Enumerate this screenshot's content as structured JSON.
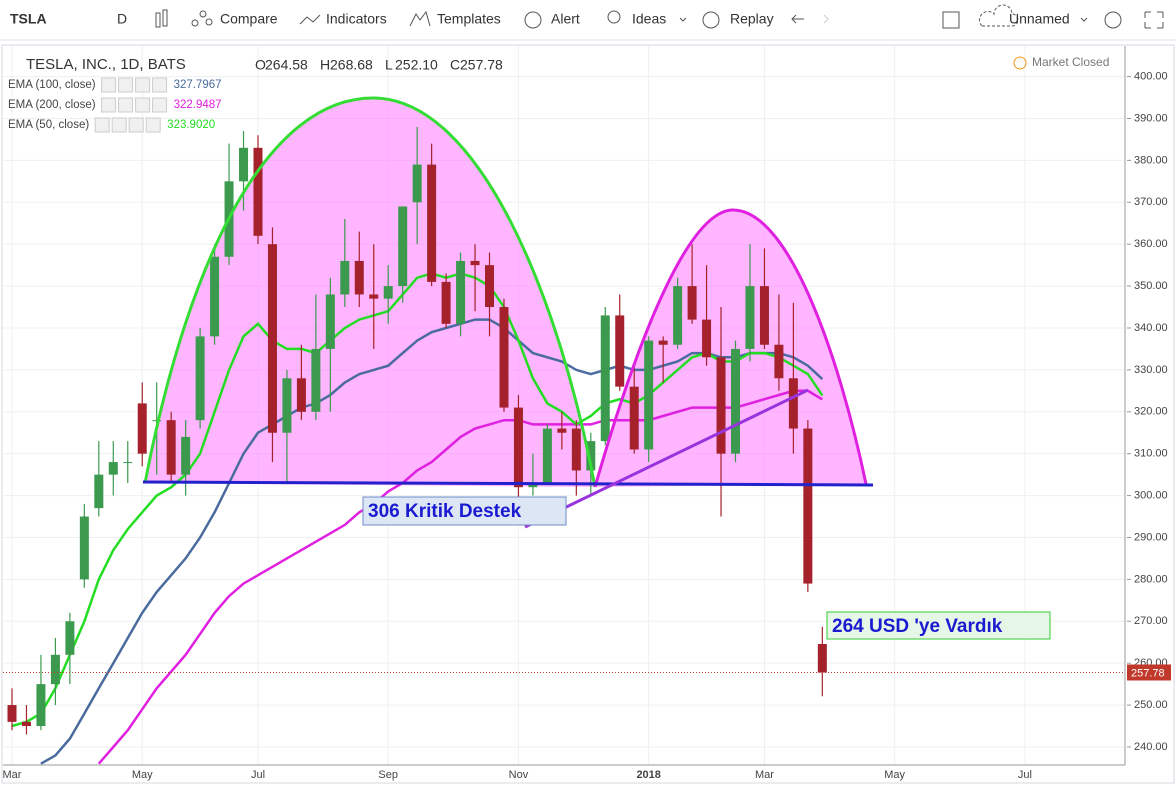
{
  "toolbar": {
    "symbol": "TSLA",
    "interval": "D",
    "buttons": [
      "Compare",
      "Indicators",
      "Templates",
      "Alert",
      "Ideas",
      "Replay"
    ],
    "layout": "Unnamed"
  },
  "chart_data": {
    "type": "candlestick",
    "title": "TESLA, INC., 1D, BATS",
    "status": "Market Closed",
    "ohlc_prefixes": [
      "O",
      "H",
      "L",
      "C"
    ],
    "last_labels": {
      "open": "264.58",
      "high": "268.68",
      "low": "252.10",
      "close": "257.78"
    },
    "annotations": [
      "306 Kritik Destek",
      "264 USD 'ye Vardık"
    ],
    "categories": [
      "Mar",
      null,
      null,
      null,
      null,
      null,
      null,
      null,
      null,
      "May",
      null,
      null,
      null,
      null,
      null,
      null,
      null,
      "Jul",
      null,
      null,
      null,
      null,
      null,
      null,
      null,
      null,
      "Sep",
      null,
      null,
      null,
      null,
      null,
      null,
      null,
      null,
      "Nov",
      null,
      null,
      null,
      null,
      null,
      null,
      null,
      null,
      "2018",
      null,
      null,
      null,
      null,
      null,
      null,
      null,
      "Mar",
      null,
      null,
      null,
      null,
      null,
      null,
      null,
      null,
      "May",
      null,
      null,
      null,
      null,
      null,
      null,
      null,
      null,
      "Jul",
      null,
      null,
      null,
      null,
      null,
      null
    ],
    "open": [
      250,
      246,
      245,
      255,
      262,
      280,
      297,
      305,
      308,
      322,
      318,
      318,
      305,
      318,
      338,
      357,
      375,
      383,
      360,
      315,
      328,
      320,
      335,
      348,
      356,
      348,
      347,
      350,
      370,
      379,
      351,
      341,
      356,
      355,
      345,
      321,
      302,
      303,
      316,
      316,
      306,
      313,
      343,
      326,
      311,
      337,
      336,
      350,
      342,
      333,
      310,
      335,
      350,
      336,
      328,
      316,
      264.58,
      null,
      null,
      null,
      null,
      null,
      null,
      null,
      null,
      null,
      null,
      null,
      null,
      null,
      null,
      null,
      null,
      null,
      null,
      null,
      null
    ],
    "high": [
      254,
      250,
      262,
      266,
      272,
      298,
      313,
      313,
      313,
      327,
      327,
      320,
      318,
      340,
      360,
      384,
      387,
      386,
      364,
      330,
      336,
      348,
      352,
      366,
      363,
      360,
      355,
      369,
      388,
      384,
      353,
      358,
      360,
      358,
      347,
      324,
      310,
      317,
      320,
      318,
      315,
      345,
      348,
      332,
      338,
      338,
      352,
      360,
      355,
      345,
      337,
      360,
      359,
      348,
      346,
      318,
      268.68,
      null,
      null,
      null,
      null,
      null,
      null,
      null,
      null,
      null,
      null,
      null,
      null,
      null,
      null,
      null,
      null,
      null,
      null,
      null,
      null
    ],
    "low": [
      244,
      243,
      244,
      250,
      255,
      278,
      295,
      300,
      303,
      307,
      305,
      303,
      300,
      316,
      336,
      355,
      368,
      360,
      308,
      303,
      318,
      318,
      320,
      345,
      345,
      335,
      341,
      346,
      360,
      350,
      340,
      338,
      344,
      338,
      320,
      299,
      300,
      303,
      311,
      300,
      300,
      312,
      325,
      310,
      308,
      327,
      335,
      341,
      331,
      295,
      308,
      332,
      335,
      325,
      310,
      277,
      252.1,
      null,
      null,
      null,
      null,
      null,
      null,
      null,
      null,
      null,
      null,
      null,
      null,
      null,
      null,
      null,
      null,
      null,
      null,
      null,
      null
    ],
    "close": [
      246,
      245,
      255,
      262,
      270,
      295,
      305,
      308,
      308,
      310,
      318,
      305,
      314,
      338,
      357,
      375,
      383,
      362,
      315,
      328,
      320,
      335,
      348,
      356,
      348,
      347,
      350,
      369,
      379,
      351,
      341,
      356,
      355,
      345,
      321,
      302,
      303,
      316,
      315,
      306,
      313,
      343,
      326,
      311,
      337,
      336,
      350,
      342,
      333,
      310,
      335,
      350,
      336,
      328,
      316,
      279,
      257.78,
      null,
      null,
      null,
      null,
      null,
      null,
      null,
      null,
      null,
      null,
      null,
      null,
      null,
      null,
      null,
      null,
      null,
      null,
      null,
      null
    ],
    "up_color": "#3c9a4e",
    "down_color": "#a5222c",
    "series": [
      {
        "name": "EMA (100, close)",
        "color": "#4a6b9d",
        "last_label": "327.7967",
        "values": [
          null,
          null,
          236,
          238,
          242,
          248,
          254,
          260,
          266,
          272,
          277,
          281,
          285,
          290,
          296,
          303,
          310,
          315,
          317,
          319,
          321,
          322,
          324,
          327,
          329,
          330,
          331,
          334,
          337,
          339,
          340,
          341,
          342,
          342,
          340,
          337,
          334,
          333,
          332,
          330,
          329,
          330,
          331,
          330,
          330,
          331,
          332,
          334,
          334,
          333,
          333,
          334,
          334,
          334,
          333,
          331,
          327.7967,
          null,
          null,
          null,
          null,
          null,
          null,
          null,
          null,
          null,
          null,
          null,
          null,
          null,
          null,
          null,
          null,
          null,
          null,
          null,
          null
        ]
      },
      {
        "name": "EMA (200, close)",
        "color": "#e020e0",
        "last_label": "322.9487",
        "values": [
          null,
          null,
          null,
          null,
          null,
          null,
          236,
          240,
          244,
          249,
          254,
          258,
          262,
          267,
          272,
          276,
          279,
          281,
          283,
          285,
          287,
          289,
          291,
          293,
          296,
          298,
          301,
          303,
          306,
          308,
          311,
          314,
          316,
          317,
          318,
          318,
          317,
          317,
          317,
          317,
          317,
          318,
          318,
          318,
          318,
          319,
          320,
          321,
          321,
          321,
          321,
          322,
          323,
          324,
          325,
          325,
          322.9487,
          null,
          null,
          null,
          null,
          null,
          null,
          null,
          null,
          null,
          null,
          null,
          null,
          null,
          null,
          null,
          null,
          null,
          null,
          null,
          null
        ]
      },
      {
        "name": "EMA (50, close)",
        "color": "#22dd22",
        "last_label": "323.9020",
        "values": [
          245,
          246,
          248,
          254,
          262,
          270,
          280,
          287,
          292,
          296,
          300,
          302,
          305,
          310,
          320,
          330,
          338,
          341,
          337,
          335,
          335,
          334,
          337,
          340,
          342,
          343,
          344,
          348,
          352,
          353,
          352,
          353,
          352,
          350,
          345,
          337,
          328,
          322,
          320,
          317,
          319,
          322,
          323,
          322,
          324,
          327,
          330,
          333,
          334,
          332,
          332,
          334,
          334,
          333,
          331,
          329,
          323.902,
          null,
          null,
          null,
          null,
          null,
          null,
          null,
          null,
          null,
          null,
          null,
          null,
          null,
          null,
          null,
          null,
          null,
          null,
          null,
          null
        ]
      }
    ],
    "ylim": [
      235.7,
      407.3
    ],
    "yticks": [
      {
        "value": 240,
        "label": "240.00"
      },
      {
        "value": 250,
        "label": "250.00"
      },
      {
        "value": 260,
        "label": "260.00"
      },
      {
        "value": 270,
        "label": "270.00"
      },
      {
        "value": 280,
        "label": "280.00"
      },
      {
        "value": 290,
        "label": "290.00"
      },
      {
        "value": 300,
        "label": "300.00"
      },
      {
        "value": 310,
        "label": "310.00"
      },
      {
        "value": 320,
        "label": "320.00"
      },
      {
        "value": 330,
        "label": "330.00"
      },
      {
        "value": 340,
        "label": "340.00"
      },
      {
        "value": 350,
        "label": "350.00"
      },
      {
        "value": 360,
        "label": "360.00"
      },
      {
        "value": 370,
        "label": "370.00"
      },
      {
        "value": 380,
        "label": "380.00"
      },
      {
        "value": 390,
        "label": "390.00"
      },
      {
        "value": 400,
        "label": "400.00"
      }
    ],
    "grid": true
  }
}
